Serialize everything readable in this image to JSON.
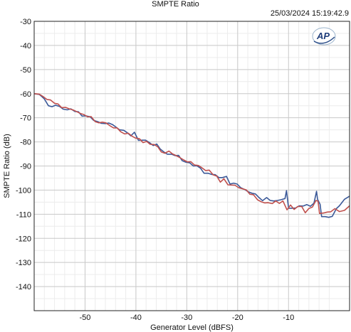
{
  "chart_data": {
    "type": "line",
    "title": "SMPTE Ratio",
    "timestamp": "25/03/2024 15:19:42.9",
    "logo": "AP",
    "xlabel": "Generator Level (dBFS)",
    "ylabel": "SMPTE Ratio (dB)",
    "xlim": [
      -60,
      2
    ],
    "ylim": [
      -150,
      -30
    ],
    "xticks": [
      -50,
      -40,
      -30,
      -20,
      -10
    ],
    "yticks": [
      -30,
      -40,
      -50,
      -60,
      -70,
      -80,
      -90,
      -100,
      -110,
      -120,
      -130,
      -140
    ],
    "grid": true,
    "series": [
      {
        "color": "#3b5998",
        "x": [
          -60,
          -59,
          -58.5,
          -58,
          -57.2,
          -56.5,
          -55.8,
          -55,
          -54.3,
          -53.5,
          -52.8,
          -52,
          -51.3,
          -50.6,
          -49.8,
          -49,
          -48.3,
          -47.5,
          -46.8,
          -46,
          -45.3,
          -44.6,
          -43.9,
          -43.2,
          -42.4,
          -41.7,
          -41,
          -40.3,
          -39.5,
          -38.8,
          -38.1,
          -37.4,
          -36.6,
          -35.9,
          -35.2,
          -34.5,
          -33.8,
          -33,
          -32.3,
          -31.6,
          -30.9,
          -30.2,
          -29.4,
          -28.7,
          -28,
          -27.3,
          -26.6,
          -25.8,
          -25.1,
          -24.4,
          -23.7,
          -23,
          -22.2,
          -21.5,
          -20.8,
          -20.1,
          -19.4,
          -18.6,
          -17.9,
          -17.2,
          -16.5,
          -15.8,
          -15.1,
          -14.3,
          -13.6,
          -12.9,
          -12.2,
          -11.5,
          -10.7,
          -10.4,
          -10,
          -9.3,
          -8.6,
          -7.9,
          -7.1,
          -6.4,
          -5.7,
          -5,
          -4.5,
          -4.3,
          -3.8,
          -3.5,
          -2.8,
          -2.1,
          -1.4,
          -0.6,
          0,
          1,
          2
        ],
        "values": [
          -60.0,
          -60.3,
          -61.2,
          -62.2,
          -65.0,
          -65.4,
          -64.8,
          -65.3,
          -66.4,
          -66.7,
          -66.3,
          -67.4,
          -67.5,
          -69.3,
          -69.2,
          -69.6,
          -71.1,
          -71.6,
          -72.3,
          -72.4,
          -72.2,
          -72.8,
          -73.9,
          -75.0,
          -75.2,
          -76.2,
          -77.5,
          -76.0,
          -79.4,
          -79.3,
          -79.3,
          -80.2,
          -81.5,
          -80.9,
          -83.0,
          -84.2,
          -85.1,
          -85.1,
          -85.7,
          -85.6,
          -87.8,
          -88.4,
          -88.7,
          -90.0,
          -89.9,
          -90.9,
          -93.0,
          -93.0,
          -93.5,
          -93.6,
          -94.8,
          -94.8,
          -94.3,
          -97.5,
          -97.1,
          -97.5,
          -99.0,
          -99.8,
          -100.7,
          -101.3,
          -101.6,
          -103.1,
          -104.4,
          -103.1,
          -104.3,
          -104.5,
          -104.3,
          -104.0,
          -103.5,
          -100.2,
          -107.5,
          -107.5,
          -107.4,
          -106.5,
          -106.6,
          -106.0,
          -106.7,
          -105.4,
          -100.5,
          -103.8,
          -105.9,
          -111.0,
          -111.0,
          -111.3,
          -110.9,
          -107.7,
          -106.5,
          -103.8,
          -102.5
        ]
      },
      {
        "color": "#c0504d",
        "x": [
          -60,
          -59,
          -58.3,
          -57.5,
          -56.8,
          -56,
          -55.3,
          -54.6,
          -53.8,
          -53.1,
          -52.4,
          -51.7,
          -50.9,
          -50.2,
          -49.5,
          -48.8,
          -48,
          -47.3,
          -46.6,
          -45.9,
          -45.1,
          -44.4,
          -43.7,
          -43,
          -42.2,
          -41.5,
          -40.8,
          -40.1,
          -39.3,
          -38.6,
          -37.9,
          -37.2,
          -36.4,
          -35.7,
          -35,
          -34.3,
          -33.5,
          -32.8,
          -32.1,
          -31.4,
          -30.6,
          -29.9,
          -29.2,
          -28.5,
          -27.7,
          -27,
          -26.3,
          -25.6,
          -24.8,
          -24.1,
          -23.4,
          -22.7,
          -21.9,
          -21.2,
          -20.5,
          -19.8,
          -19,
          -18.3,
          -17.6,
          -16.9,
          -16.1,
          -15.4,
          -14.7,
          -14,
          -13.2,
          -12.5,
          -11.8,
          -11.1,
          -10.3,
          -9.6,
          -8.9,
          -8.2,
          -7.4,
          -6.7,
          -6,
          -5.3,
          -4.6,
          -4.2,
          -3.9,
          -3.1,
          -2.4,
          -1.7,
          -0.9,
          0,
          1,
          2
        ],
        "values": [
          -60.0,
          -60.2,
          -61.1,
          -62.4,
          -62.6,
          -64.0,
          -64.3,
          -65.8,
          -65.7,
          -66.3,
          -66.7,
          -67.4,
          -68.2,
          -68.7,
          -69.6,
          -69.5,
          -71.6,
          -72.1,
          -71.8,
          -72.1,
          -73.3,
          -74.2,
          -74.2,
          -75.8,
          -76.7,
          -76.4,
          -77.6,
          -78.4,
          -78.7,
          -80.3,
          -79.8,
          -81.0,
          -81.1,
          -82.0,
          -84.2,
          -84.7,
          -83.8,
          -85.0,
          -85.7,
          -86.5,
          -87.5,
          -88.3,
          -88.2,
          -89.6,
          -89.8,
          -90.8,
          -91.9,
          -91.7,
          -93.7,
          -94.2,
          -96.7,
          -95.3,
          -97.8,
          -97.9,
          -98.0,
          -99.0,
          -99.5,
          -99.9,
          -101.7,
          -101.9,
          -104.0,
          -104.8,
          -105.3,
          -105.2,
          -105.6,
          -104.5,
          -105.5,
          -104.5,
          -108.2,
          -106.2,
          -108.0,
          -106.8,
          -106.8,
          -109.4,
          -107.6,
          -107.0,
          -104.3,
          -104.6,
          -109.7,
          -109.5,
          -109.1,
          -109.0,
          -107.7,
          -108.9,
          -108.4,
          -106.5
        ]
      }
    ]
  }
}
